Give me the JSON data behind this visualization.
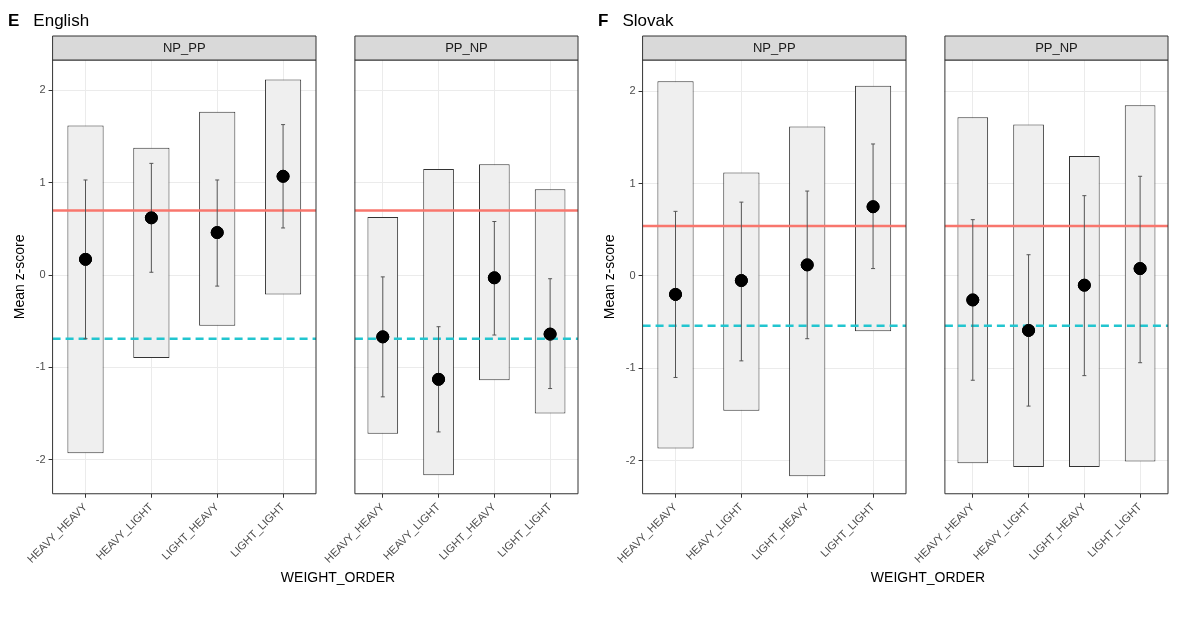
{
  "chart_data": [
    {
      "type": "bar",
      "title": "NP_PP",
      "ylabel": "Mean z-score",
      "xlabel": "WEIGHT_ORDER",
      "annotations": [
        "E",
        "English"
      ],
      "categories": [
        "HEAVY_HEAVY",
        "HEAVY_LIGHT",
        "LIGHT_HEAVY",
        "LIGHT_LIGHT"
      ],
      "ylim": [
        -2.37,
        2.33
      ],
      "yticks": [
        -2,
        -1,
        0,
        1,
        2
      ],
      "grid": true,
      "series": [
        {
          "color": "#efefef",
          "base": [
            -1.93,
            -0.9,
            -0.55,
            -0.21
          ],
          "values": [
            3.55,
            2.28,
            2.32,
            2.33
          ]
        },
        {
          "type": "scatter",
          "color": "#000000",
          "marker": "circle",
          "x": [
            "HEAVY_HEAVY",
            "HEAVY_LIGHT",
            "LIGHT_HEAVY",
            "LIGHT_LIGHT"
          ],
          "values": [
            0.17,
            0.62,
            0.46,
            1.07
          ],
          "errors": [
            [
              -0.69,
              1.03
            ],
            [
              0.03,
              1.21
            ],
            [
              -0.12,
              1.03
            ],
            [
              0.51,
              1.63
            ]
          ]
        }
      ],
      "ref_lines": [
        {
          "axis": "y",
          "value": 0.7,
          "color": "#f8766d",
          "line_style": "solid"
        },
        {
          "axis": "y",
          "value": -0.69,
          "color": "#22c5cf",
          "line_style": "dashed"
        }
      ]
    },
    {
      "type": "bar",
      "title": "PP_NP",
      "tick_labels": "x",
      "categories": [
        "HEAVY_HEAVY",
        "HEAVY_LIGHT",
        "LIGHT_HEAVY",
        "LIGHT_LIGHT"
      ],
      "ylim": [
        -2.37,
        2.33
      ],
      "yticks": [
        -2,
        -1,
        0,
        1,
        2
      ],
      "grid": true,
      "series": [
        {
          "color": "#efefef",
          "base": [
            -1.72,
            -2.17,
            -1.14,
            -1.5
          ],
          "values": [
            2.35,
            3.32,
            2.34,
            2.43
          ]
        },
        {
          "type": "scatter",
          "color": "#000000",
          "marker": "circle",
          "x": [
            "HEAVY_HEAVY",
            "HEAVY_LIGHT",
            "LIGHT_HEAVY",
            "LIGHT_LIGHT"
          ],
          "values": [
            -0.67,
            -1.13,
            -0.03,
            -0.64
          ],
          "errors": [
            [
              -1.32,
              -0.02
            ],
            [
              -1.7,
              -0.56
            ],
            [
              -0.65,
              0.58
            ],
            [
              -1.23,
              -0.04
            ]
          ]
        }
      ],
      "ref_lines": [
        {
          "axis": "y",
          "value": 0.7,
          "color": "#f8766d",
          "line_style": "solid"
        },
        {
          "axis": "y",
          "value": -0.69,
          "color": "#22c5cf",
          "line_style": "dashed"
        }
      ]
    },
    {
      "type": "bar",
      "title": "NP_PP",
      "ylabel": "Mean z-score",
      "xlabel": "WEIGHT_ORDER",
      "annotations": [
        "F",
        "Slovak"
      ],
      "categories": [
        "HEAVY_HEAVY",
        "HEAVY_LIGHT",
        "LIGHT_HEAVY",
        "LIGHT_LIGHT"
      ],
      "ylim": [
        -2.36,
        2.34
      ],
      "yticks": [
        -2,
        -1,
        0,
        1,
        2
      ],
      "grid": true,
      "series": [
        {
          "color": "#efefef",
          "base": [
            -1.87,
            -1.46,
            -2.17,
            -0.6
          ],
          "values": [
            3.98,
            2.58,
            3.79,
            2.66
          ]
        },
        {
          "type": "scatter",
          "color": "#000000",
          "marker": "circle",
          "x": [
            "HEAVY_HEAVY",
            "HEAVY_LIGHT",
            "LIGHT_HEAVY",
            "LIGHT_LIGHT"
          ],
          "values": [
            -0.2,
            -0.05,
            0.12,
            0.75
          ],
          "errors": [
            [
              -1.1,
              0.7
            ],
            [
              -0.92,
              0.8
            ],
            [
              -0.68,
              0.92
            ],
            [
              0.08,
              1.43
            ]
          ]
        }
      ],
      "ref_lines": [
        {
          "axis": "y",
          "value": 0.54,
          "color": "#f8766d",
          "line_style": "solid"
        },
        {
          "axis": "y",
          "value": -0.54,
          "color": "#22c5cf",
          "line_style": "dashed"
        }
      ]
    },
    {
      "type": "bar",
      "title": "PP_NP",
      "tick_labels": "x",
      "categories": [
        "HEAVY_HEAVY",
        "HEAVY_LIGHT",
        "LIGHT_HEAVY",
        "LIGHT_LIGHT"
      ],
      "ylim": [
        -2.36,
        2.34
      ],
      "yticks": [
        -2,
        -1,
        0,
        1,
        2
      ],
      "grid": true,
      "series": [
        {
          "color": "#efefef",
          "base": [
            -2.03,
            -2.07,
            -2.07,
            -2.01
          ],
          "values": [
            3.75,
            3.71,
            3.37,
            3.86
          ]
        },
        {
          "type": "scatter",
          "color": "#000000",
          "marker": "circle",
          "x": [
            "HEAVY_HEAVY",
            "HEAVY_LIGHT",
            "LIGHT_HEAVY",
            "LIGHT_LIGHT"
          ],
          "values": [
            -0.26,
            -0.59,
            -0.1,
            0.08
          ],
          "errors": [
            [
              -1.13,
              0.61
            ],
            [
              -1.41,
              0.23
            ],
            [
              -1.08,
              0.87
            ],
            [
              -0.94,
              1.08
            ]
          ]
        }
      ],
      "ref_lines": [
        {
          "axis": "y",
          "value": 0.54,
          "color": "#f8766d",
          "line_style": "solid"
        },
        {
          "axis": "y",
          "value": -0.54,
          "color": "#22c5cf",
          "line_style": "dashed"
        }
      ]
    }
  ]
}
